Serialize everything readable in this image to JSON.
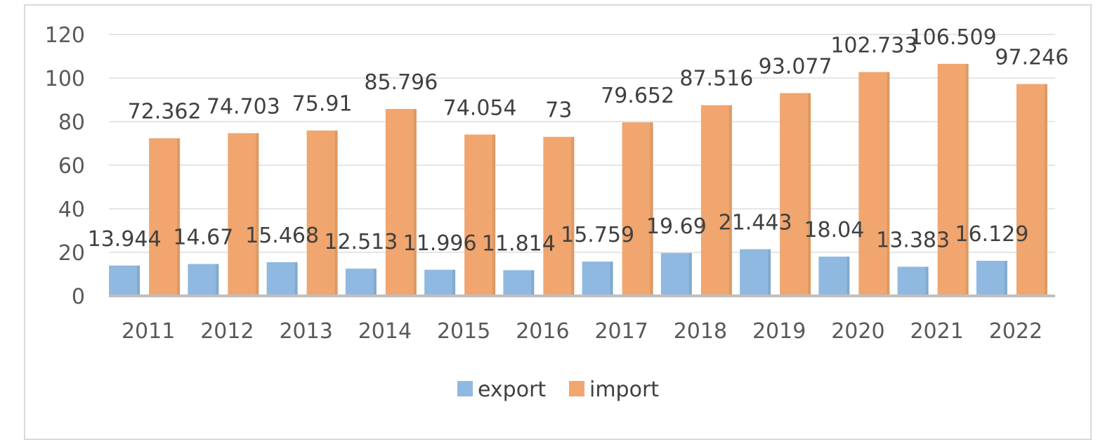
{
  "chart_data": {
    "type": "bar",
    "categories": [
      "2011",
      "2012",
      "2013",
      "2014",
      "2015",
      "2016",
      "2017",
      "2018",
      "2019",
      "2020",
      "2021",
      "2022"
    ],
    "series": [
      {
        "name": "export",
        "color": "#8fb9e0",
        "values": [
          13.944,
          14.67,
          15.468,
          12.513,
          11.996,
          11.814,
          15.759,
          19.69,
          21.443,
          18.04,
          13.383,
          16.129
        ],
        "labels": [
          "13.944",
          "14.67",
          "15.468",
          "12.513",
          "11.996",
          "11.814",
          "15.759",
          "19.69",
          "21.443",
          "18.04",
          "13.383",
          "16.129"
        ]
      },
      {
        "name": "import",
        "color": "#f0a66e",
        "values": [
          72.362,
          74.703,
          75.91,
          85.796,
          74.054,
          73,
          79.652,
          87.516,
          93.077,
          102.733,
          106.509,
          97.246
        ],
        "labels": [
          "72.362",
          "74.703",
          "75.91",
          "85.796",
          "74.054",
          "73",
          "79.652",
          "87.516",
          "93.077",
          "102.733",
          "106.509",
          "97.246"
        ]
      }
    ],
    "y_ticks": [
      "0",
      "20",
      "40",
      "60",
      "80",
      "100",
      "120"
    ],
    "ylim": [
      0,
      120
    ],
    "grid": true,
    "legend_position": "bottom",
    "title": "",
    "xlabel": "",
    "ylabel": ""
  }
}
